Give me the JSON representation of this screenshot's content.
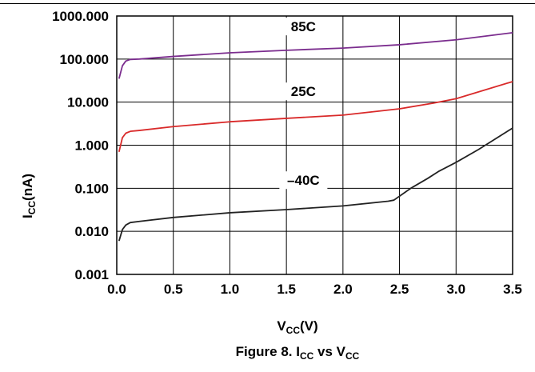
{
  "chart_data": {
    "type": "line",
    "title": "",
    "xlabel": {
      "main": "V",
      "sub": "CC",
      "tail": "(V)"
    },
    "ylabel": {
      "main": "I",
      "sub": "CC",
      "tail": "(nA)"
    },
    "caption": {
      "prefix": "Figure 8. I",
      "sub1": "CC",
      "mid": " vs V",
      "sub2": "CC"
    },
    "x_ticks": [
      "0.0",
      "0.5",
      "1.0",
      "1.5",
      "2.0",
      "2.5",
      "3.0",
      "3.5"
    ],
    "x_tick_values": [
      0,
      0.5,
      1.0,
      1.5,
      2.0,
      2.5,
      3.0,
      3.5
    ],
    "y_ticks": [
      "0.001",
      "0.010",
      "0.100",
      "1.000",
      "10.000",
      "100.000",
      "1000.000"
    ],
    "y_tick_values": [
      0.001,
      0.01,
      0.1,
      1,
      10,
      100,
      1000
    ],
    "xlim": [
      0,
      3.5
    ],
    "ylim": [
      0.001,
      1000
    ],
    "y_scale": "log",
    "grid": true,
    "series": [
      {
        "name": "85C",
        "color": "#7b2d8e",
        "x": [
          0.02,
          0.05,
          0.08,
          0.12,
          0.2,
          0.5,
          1.0,
          1.5,
          2.0,
          2.5,
          3.0,
          3.5
        ],
        "y": [
          35,
          70,
          90,
          98,
          100,
          115,
          140,
          160,
          180,
          215,
          280,
          410
        ]
      },
      {
        "name": "25C",
        "color": "#d92a2a",
        "x": [
          0.02,
          0.05,
          0.08,
          0.12,
          0.2,
          0.5,
          1.0,
          1.5,
          2.0,
          2.5,
          2.8,
          3.0,
          3.5
        ],
        "y": [
          0.7,
          1.5,
          1.9,
          2.1,
          2.2,
          2.7,
          3.5,
          4.2,
          5.0,
          7.0,
          9.5,
          12,
          30
        ]
      },
      {
        "name": "–40C",
        "color": "#222222",
        "x": [
          0.02,
          0.05,
          0.08,
          0.12,
          0.2,
          0.5,
          1.0,
          1.5,
          2.0,
          2.4,
          2.45,
          2.6,
          2.75,
          2.85,
          3.0,
          3.2,
          3.5
        ],
        "y": [
          0.006,
          0.011,
          0.014,
          0.016,
          0.017,
          0.021,
          0.027,
          0.032,
          0.039,
          0.05,
          0.053,
          0.1,
          0.17,
          0.25,
          0.4,
          0.8,
          2.5
        ]
      }
    ],
    "series_label_positions": [
      {
        "x": 1.65,
        "y": 480
      },
      {
        "x": 1.65,
        "y": 15
      },
      {
        "x": 1.65,
        "y": 0.13
      }
    ]
  }
}
